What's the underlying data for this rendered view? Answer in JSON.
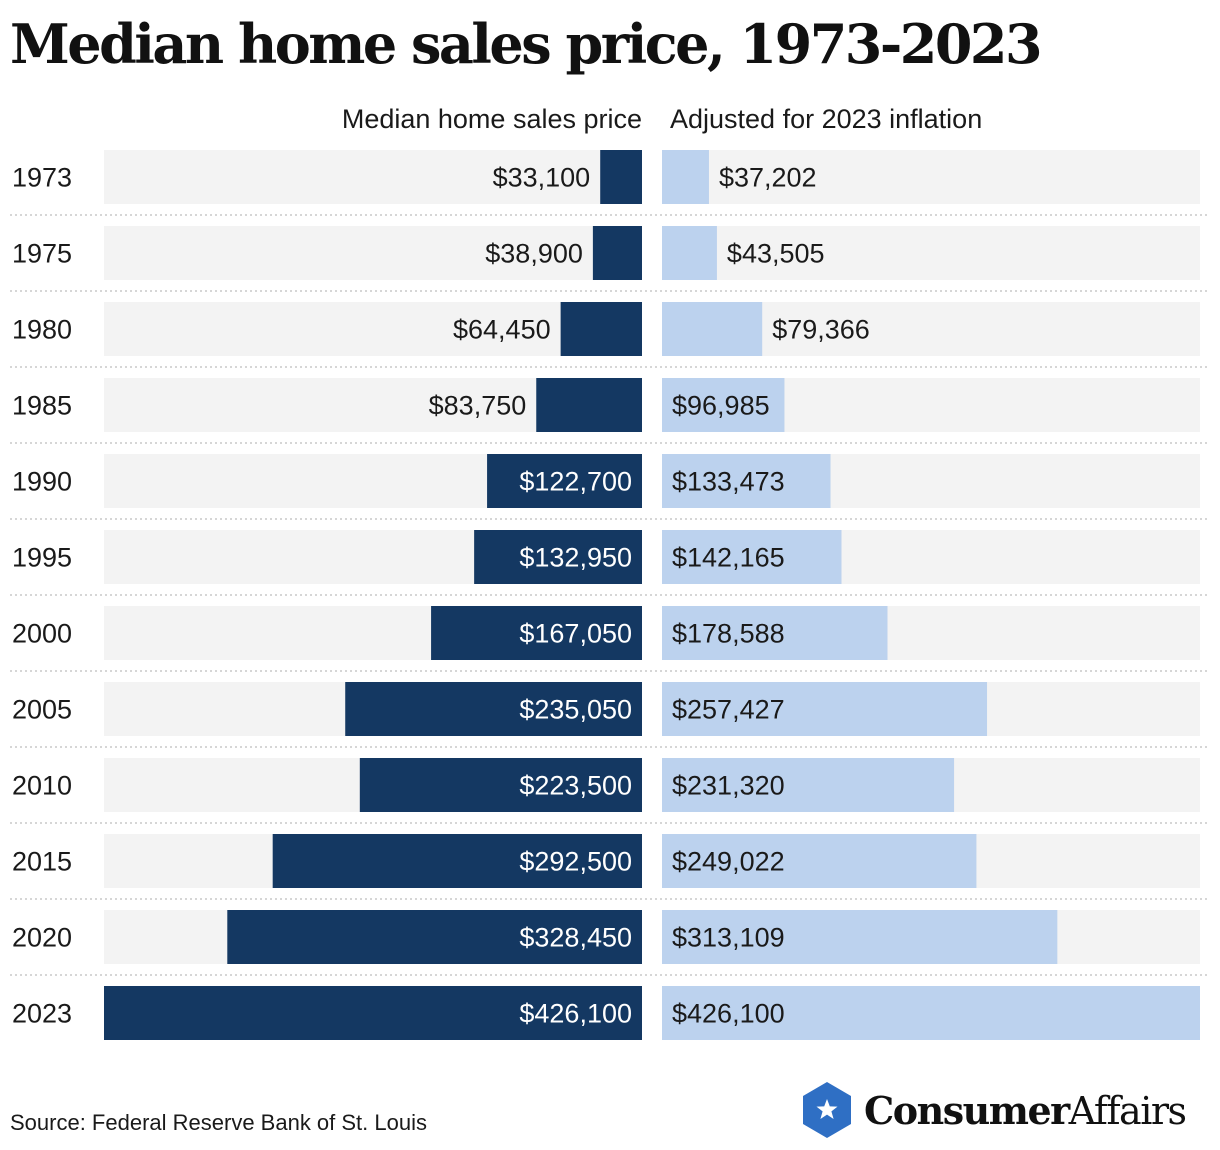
{
  "title": "Median home sales price, 1973-2023",
  "source": "Source: Federal Reserve Bank of St. Louis",
  "brand": {
    "name_bold": "Consumer",
    "name_regular": "Affairs",
    "icon": "star-hexagon-icon",
    "color": "#2f6fc4"
  },
  "colors": {
    "nominal_bar": "#143862",
    "adjusted_bar": "#bcd2ee",
    "track": "#f3f3f3"
  },
  "chart_data": {
    "type": "bar",
    "orientation": "horizontal",
    "layout": "butterfly",
    "categories": [
      "1973",
      "1975",
      "1980",
      "1985",
      "1990",
      "1995",
      "2000",
      "2005",
      "2010",
      "2015",
      "2020",
      "2023"
    ],
    "series": [
      {
        "name": "Median home sales price",
        "values": [
          33100,
          38900,
          64450,
          83750,
          122700,
          132950,
          167050,
          235050,
          223500,
          292500,
          328450,
          426100
        ],
        "labels": [
          "$33,100",
          "$38,900",
          "$64,450",
          "$83,750",
          "$122,700",
          "$132,950",
          "$167,050",
          "$235,050",
          "$223,500",
          "$292,500",
          "$328,450",
          "$426,100"
        ]
      },
      {
        "name": "Adjusted for 2023 inflation",
        "values": [
          37202,
          43505,
          79366,
          96985,
          133473,
          142165,
          178588,
          257427,
          231320,
          249022,
          313109,
          426100
        ],
        "labels": [
          "$37,202",
          "$43,505",
          "$79,366",
          "$96,985",
          "$133,473",
          "$142,165",
          "$178,588",
          "$257,427",
          "$231,320",
          "$249,022",
          "$313,109",
          "$426,100"
        ]
      }
    ],
    "xlim": [
      0,
      426100
    ],
    "grid": false,
    "legend": "column headers"
  }
}
